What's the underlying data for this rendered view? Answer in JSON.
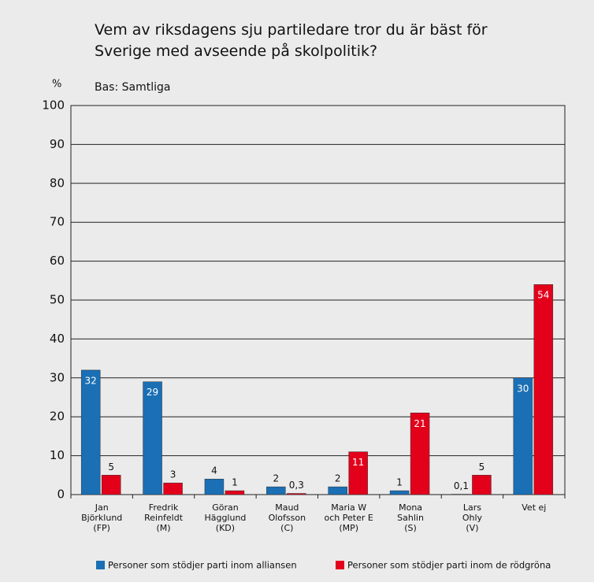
{
  "chart_data": {
    "type": "bar",
    "title": "Vem av riksdagens sju partiledare tror du är bäst för\nSverige med avseende på skolpolitik?",
    "subtitle": "Bas: Samtliga",
    "y_label": "%",
    "categories": [
      "Jan\nBjörklund\n(FP)",
      "Fredrik\nReinfeldt\n(M)",
      "Göran\nHägglund\n(KD)",
      "Maud\nOlofsson\n(C)",
      "Maria W\noch Peter E\n(MP)",
      "Mona\nSahlin\n(S)",
      "Lars\nOhly\n(V)",
      "Vet ej"
    ],
    "series": [
      {
        "name": "Personer som stödjer parti inom alliansen",
        "color": "#1a6fb5",
        "values": [
          32,
          29,
          4,
          2,
          2,
          1,
          0.1,
          30
        ],
        "value_labels": [
          "32",
          "29",
          "4",
          "2",
          "2",
          "1",
          "0,1",
          "30"
        ]
      },
      {
        "name": "Personer som stödjer parti inom de rödgröna",
        "color": "#e3001b",
        "values": [
          5,
          3,
          1,
          0.3,
          11,
          21,
          5,
          54
        ],
        "value_labels": [
          "5",
          "3",
          "1",
          "0,3",
          "11",
          "21",
          "5",
          "54"
        ]
      }
    ],
    "ylim": [
      0,
      100
    ],
    "yticks": [
      0,
      10,
      20,
      30,
      40,
      50,
      60,
      70,
      80,
      90,
      100
    ],
    "grid": true
  }
}
